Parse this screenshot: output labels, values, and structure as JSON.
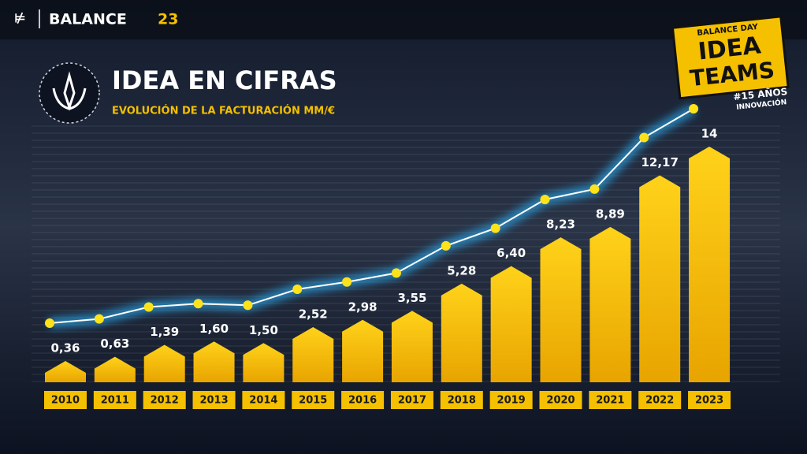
{
  "header": {
    "brand": "BALANCE",
    "edition": "23"
  },
  "badge": {
    "top": "BALANCE DAY",
    "line1": "IDEA",
    "line2": "TEAMS",
    "years": "#15 AÑOS",
    "caption": "INNOVACIÓN"
  },
  "chart_data": {
    "type": "bar",
    "title": "IDEA EN CIFRAS",
    "subtitle": "EVOLUCIÓN DE LA FACTURACIÓN MM/€",
    "categories": [
      "2010",
      "2011",
      "2012",
      "2013",
      "2014",
      "2015",
      "2016",
      "2017",
      "2018",
      "2019",
      "2020",
      "2021",
      "2022",
      "2023"
    ],
    "values": [
      0.36,
      0.63,
      1.39,
      1.6,
      1.5,
      2.52,
      2.98,
      3.55,
      5.28,
      6.4,
      8.23,
      8.89,
      12.17,
      14
    ],
    "value_labels": [
      "0,36",
      "0,63",
      "1,39",
      "1,60",
      "1,50",
      "2,52",
      "2,98",
      "3,55",
      "5,28",
      "6,40",
      "8,23",
      "8,89",
      "12,17",
      "14"
    ],
    "color": "#f5c000",
    "line_color": "#ffe21a"
  }
}
